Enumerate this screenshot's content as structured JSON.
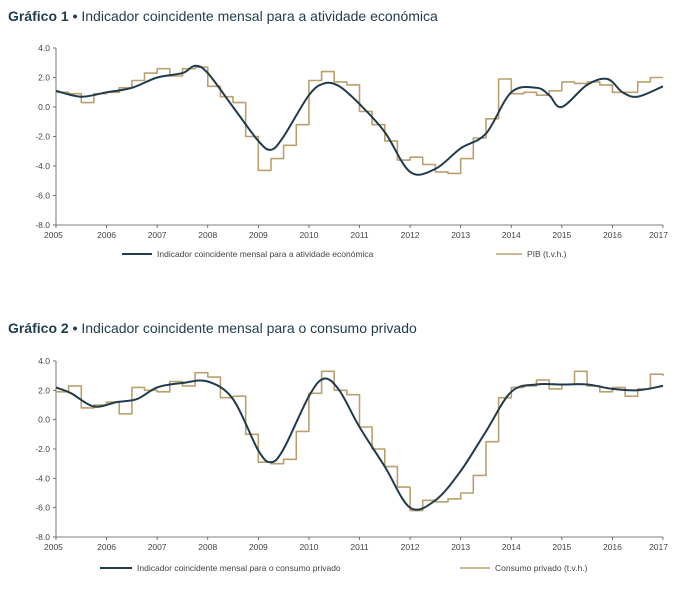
{
  "colors": {
    "navy": "#1f3b4d",
    "gold": "#b9a06e",
    "axis": "#555555",
    "text": "#444444"
  },
  "chart_data": [
    {
      "type": "line",
      "title_prefix": "Gráfico 1 •",
      "title_text": "Indicador coincidente mensal para a atividade económica",
      "ylim": [
        -8.0,
        4.0
      ],
      "yticks": [
        "4.0",
        "2.0",
        "0.0",
        "-2.0",
        "-4.0",
        "-6.0",
        "-8.0"
      ],
      "xlim": [
        2005,
        2017
      ],
      "xticks": [
        "2005",
        "2006",
        "2007",
        "2008",
        "2009",
        "2010",
        "2011",
        "2012",
        "2013",
        "2014",
        "2015",
        "2016",
        "2017"
      ],
      "legend_position": "bottom",
      "series": [
        {
          "name": "Indicador coincidente mensal para a atividade económica",
          "style": "smooth",
          "x": [
            2005,
            2005.5,
            2006,
            2006.5,
            2007,
            2007.5,
            2007.75,
            2008,
            2008.5,
            2009,
            2009.25,
            2009.5,
            2010,
            2010.3,
            2010.6,
            2011,
            2011.5,
            2012,
            2012.5,
            2013,
            2013.5,
            2014,
            2014.5,
            2014.75,
            2015,
            2015.5,
            2015.9,
            2016.2,
            2016.5,
            2017
          ],
          "values": [
            1.1,
            0.7,
            1.0,
            1.3,
            2.0,
            2.3,
            2.8,
            2.3,
            0.0,
            -2.3,
            -2.9,
            -2.0,
            0.8,
            1.6,
            1.4,
            0.2,
            -1.7,
            -4.4,
            -4.2,
            -2.8,
            -1.8,
            1.0,
            1.3,
            0.8,
            0.0,
            1.5,
            1.9,
            1.0,
            0.7,
            1.4
          ]
        },
        {
          "name": "PIB (t.v.h.)",
          "style": "step",
          "x": [
            2005,
            2005.25,
            2005.5,
            2005.75,
            2006,
            2006.25,
            2006.5,
            2006.75,
            2007,
            2007.25,
            2007.5,
            2007.75,
            2008,
            2008.25,
            2008.5,
            2008.75,
            2009,
            2009.25,
            2009.5,
            2009.75,
            2010,
            2010.25,
            2010.5,
            2010.75,
            2011,
            2011.25,
            2011.5,
            2011.75,
            2012,
            2012.25,
            2012.5,
            2012.75,
            2013,
            2013.25,
            2013.5,
            2013.75,
            2014,
            2014.25,
            2014.5,
            2014.75,
            2015,
            2015.25,
            2015.5,
            2015.75,
            2016,
            2016.25,
            2016.5,
            2016.75,
            2017
          ],
          "values": [
            1.0,
            0.9,
            0.3,
            0.9,
            1.0,
            1.3,
            1.8,
            2.3,
            2.6,
            2.1,
            2.6,
            2.7,
            1.4,
            0.7,
            0.3,
            -2.0,
            -4.3,
            -3.5,
            -2.6,
            -1.2,
            1.8,
            2.4,
            1.7,
            1.5,
            -0.3,
            -1.2,
            -2.3,
            -3.6,
            -3.4,
            -3.9,
            -4.4,
            -4.5,
            -3.5,
            -2.1,
            -0.8,
            1.9,
            0.9,
            1.0,
            0.8,
            1.1,
            1.7,
            1.6,
            1.7,
            1.5,
            1.0,
            1.0,
            1.7,
            2.0,
            2.0
          ]
        }
      ]
    },
    {
      "type": "line",
      "title_prefix": "Gráfico 2 •",
      "title_text": "Indicador coincidente mensal para o consumo privado",
      "ylim": [
        -8.0,
        4.0
      ],
      "yticks": [
        "4.0",
        "2.0",
        "0.0",
        "-2.0",
        "-4.0",
        "-6.0",
        "-8.0"
      ],
      "xlim": [
        2005,
        2017
      ],
      "xticks": [
        "2005",
        "2006",
        "2007",
        "2008",
        "2009",
        "2010",
        "2011",
        "2012",
        "2013",
        "2014",
        "2015",
        "2016",
        "2017"
      ],
      "legend_position": "bottom",
      "series": [
        {
          "name": "Indicador coincidente mensal para o consumo privado",
          "style": "smooth",
          "x": [
            2005,
            2005.3,
            2005.75,
            2006.2,
            2006.6,
            2007,
            2007.5,
            2008,
            2008.5,
            2009,
            2009.25,
            2009.5,
            2010,
            2010.3,
            2010.6,
            2011,
            2011.5,
            2012,
            2012.5,
            2013,
            2013.5,
            2014,
            2014.5,
            2015,
            2015.5,
            2016,
            2016.5,
            2017
          ],
          "values": [
            2.2,
            1.8,
            0.9,
            1.2,
            1.4,
            2.2,
            2.5,
            2.6,
            1.4,
            -2.1,
            -2.9,
            -2.0,
            1.6,
            2.8,
            2.0,
            -0.5,
            -3.2,
            -6.0,
            -5.5,
            -3.5,
            -0.8,
            1.9,
            2.4,
            2.4,
            2.4,
            2.1,
            2.0,
            2.3
          ]
        },
        {
          "name": "Consumo privado (t.v.h.)",
          "style": "step",
          "x": [
            2005,
            2005.25,
            2005.5,
            2005.75,
            2006,
            2006.25,
            2006.5,
            2006.75,
            2007,
            2007.25,
            2007.5,
            2007.75,
            2008,
            2008.25,
            2008.5,
            2008.75,
            2009,
            2009.25,
            2009.5,
            2009.75,
            2010,
            2010.25,
            2010.5,
            2010.75,
            2011,
            2011.25,
            2011.5,
            2011.75,
            2012,
            2012.25,
            2012.5,
            2012.75,
            2013,
            2013.25,
            2013.5,
            2013.75,
            2014,
            2014.25,
            2014.5,
            2014.75,
            2015,
            2015.25,
            2015.5,
            2015.75,
            2016,
            2016.25,
            2016.5,
            2016.75,
            2017
          ],
          "values": [
            1.9,
            2.3,
            0.8,
            1.0,
            1.2,
            0.4,
            2.2,
            2.0,
            1.9,
            2.6,
            2.3,
            3.2,
            2.9,
            1.5,
            1.6,
            -1.0,
            -2.9,
            -3.0,
            -2.7,
            -0.8,
            1.8,
            3.3,
            2.0,
            1.7,
            -0.5,
            -2.0,
            -3.2,
            -4.6,
            -6.2,
            -5.5,
            -5.6,
            -5.4,
            -5.0,
            -3.8,
            -1.5,
            1.5,
            2.2,
            2.3,
            2.7,
            2.1,
            2.4,
            3.3,
            2.3,
            1.9,
            2.2,
            1.6,
            2.1,
            3.1,
            3.0
          ]
        }
      ]
    }
  ]
}
